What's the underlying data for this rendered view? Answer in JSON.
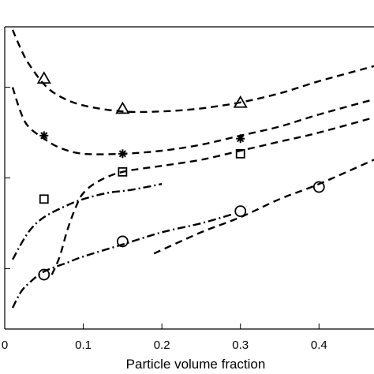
{
  "chart_data": {
    "type": "scatter",
    "title": "",
    "xlabel": "Particle volume fraction",
    "ylabel": "",
    "xlim": [
      0,
      0.47
    ],
    "ylim": [
      0,
      1
    ],
    "x_ticks": [
      0,
      0.1,
      0.2,
      0.3,
      0.4
    ],
    "x_tick_labels": [
      "0",
      "0.1",
      "0.2",
      "0.3",
      "0.4"
    ],
    "y_ticks": [
      0.2,
      0.5,
      0.8
    ],
    "y_tick_labels": [
      "",
      "",
      ""
    ],
    "grid": false,
    "legend": "none",
    "markers": [
      {
        "symbol": "triangle",
        "x": [
          0.05,
          0.15,
          0.3
        ],
        "y": [
          0.83,
          0.73,
          0.75
        ]
      },
      {
        "symbol": "star",
        "x": [
          0.05,
          0.15,
          0.3
        ],
        "y": [
          0.64,
          0.58,
          0.63
        ]
      },
      {
        "symbol": "square",
        "x": [
          0.05,
          0.15,
          0.3
        ],
        "y": [
          0.43,
          0.52,
          0.58
        ]
      },
      {
        "symbol": "circle",
        "x": [
          0.05,
          0.15,
          0.3,
          0.4
        ],
        "y": [
          0.18,
          0.29,
          0.39,
          0.47
        ]
      }
    ],
    "curves": [
      {
        "style": "dashed",
        "x": [
          0.01,
          0.02,
          0.03,
          0.05,
          0.07,
          0.1,
          0.15,
          0.2,
          0.25,
          0.3,
          0.35,
          0.4,
          0.47
        ],
        "y": [
          0.99,
          0.93,
          0.88,
          0.81,
          0.77,
          0.74,
          0.72,
          0.72,
          0.73,
          0.75,
          0.78,
          0.82,
          0.87
        ]
      },
      {
        "style": "dashed",
        "x": [
          0.01,
          0.02,
          0.03,
          0.05,
          0.07,
          0.1,
          0.15,
          0.2,
          0.25,
          0.3,
          0.35,
          0.4,
          0.47
        ],
        "y": [
          0.8,
          0.72,
          0.67,
          0.63,
          0.6,
          0.58,
          0.58,
          0.59,
          0.61,
          0.64,
          0.67,
          0.71,
          0.76
        ]
      },
      {
        "style": "dashed",
        "x": [
          0.06,
          0.07,
          0.08,
          0.09,
          0.1,
          0.12,
          0.15,
          0.2,
          0.25,
          0.3,
          0.35,
          0.4,
          0.47
        ],
        "y": [
          0.18,
          0.24,
          0.33,
          0.4,
          0.45,
          0.49,
          0.52,
          0.54,
          0.56,
          0.59,
          0.62,
          0.65,
          0.7
        ]
      },
      {
        "style": "dashed",
        "x": [
          0.19,
          0.25,
          0.3,
          0.35,
          0.4,
          0.47
        ],
        "y": [
          0.25,
          0.32,
          0.37,
          0.43,
          0.48,
          0.56
        ]
      },
      {
        "style": "dashdot",
        "x": [
          0.01,
          0.03,
          0.05,
          0.08,
          0.1,
          0.13,
          0.16,
          0.2
        ],
        "y": [
          0.23,
          0.32,
          0.37,
          0.41,
          0.43,
          0.45,
          0.46,
          0.48
        ]
      },
      {
        "style": "dashdot",
        "x": [
          0.01,
          0.02,
          0.03,
          0.05,
          0.08,
          0.1,
          0.15,
          0.2,
          0.25,
          0.29
        ],
        "y": [
          0.07,
          0.12,
          0.15,
          0.19,
          0.22,
          0.24,
          0.28,
          0.32,
          0.35,
          0.38
        ]
      }
    ]
  }
}
